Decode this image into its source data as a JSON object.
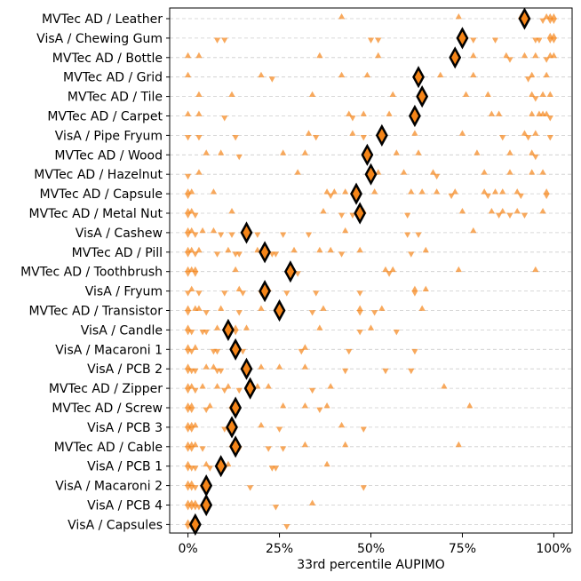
{
  "chart_data": {
    "type": "scatter",
    "title": "",
    "xlabel": "33rd percentile AUPIMO",
    "ylabel": "",
    "xlim": [
      -0.05,
      1.05
    ],
    "x_ticks": [
      {
        "value": 0,
        "label": "0%"
      },
      {
        "value": 0.25,
        "label": "25%"
      },
      {
        "value": 0.5,
        "label": "50%"
      },
      {
        "value": 0.75,
        "label": "75%"
      },
      {
        "value": 1,
        "label": "100%"
      }
    ],
    "grid": "horizontal dashed",
    "marker_color": "#f58518",
    "summary_fill": "#f58518",
    "summary_edge": "#000000",
    "series_legend": [
      "triangle-up",
      "triangle-down",
      "diamond (median)"
    ],
    "categories": [
      {
        "label": "MVTec AD / Leather",
        "median": 0.92,
        "up": [
          0.42,
          0.74,
          0.91,
          0.98,
          0.99,
          1.0
        ],
        "down": [
          0.97,
          0.99,
          1.0
        ]
      },
      {
        "label": "VisA / Chewing Gum",
        "median": 0.75,
        "up": [
          0.99,
          1.0
        ],
        "down": [
          0.08,
          0.1,
          0.5,
          0.52,
          0.78,
          0.84,
          0.95,
          0.96,
          0.99,
          1.0
        ]
      },
      {
        "label": "MVTec AD / Bottle",
        "median": 0.73,
        "up": [
          0.0,
          0.03,
          0.36,
          0.52,
          0.78,
          0.87,
          0.92,
          0.95,
          0.99,
          1.0
        ],
        "down": [
          0.88,
          0.98
        ]
      },
      {
        "label": "MVTec AD / Grid",
        "median": 0.63,
        "up": [
          0.0,
          0.2,
          0.42,
          0.49,
          0.69,
          0.78,
          0.94,
          0.98
        ],
        "down": [
          0.23,
          0.93
        ]
      },
      {
        "label": "MVTec AD / Tile",
        "median": 0.64,
        "up": [
          0.03,
          0.12,
          0.34,
          0.56,
          0.76,
          0.82,
          0.94,
          0.97,
          0.99
        ],
        "down": [
          0.95
        ]
      },
      {
        "label": "MVTec AD / Carpet",
        "median": 0.62,
        "up": [
          0.0,
          0.03,
          0.44,
          0.48,
          0.55,
          0.83,
          0.85,
          0.94,
          0.96,
          0.97,
          0.98
        ],
        "down": [
          0.1,
          0.45,
          0.99
        ]
      },
      {
        "label": "VisA / Pipe Fryum",
        "median": 0.53,
        "up": [
          0.33,
          0.45,
          0.62,
          0.75,
          0.92,
          0.95
        ],
        "down": [
          0.0,
          0.03,
          0.13,
          0.35,
          0.48,
          0.86,
          0.93,
          0.99
        ]
      },
      {
        "label": "MVTec AD / Wood",
        "median": 0.49,
        "up": [
          0.05,
          0.09,
          0.26,
          0.32,
          0.57,
          0.63,
          0.79,
          0.88,
          0.94
        ],
        "down": [
          0.14,
          0.95
        ]
      },
      {
        "label": "MVTec AD / Hazelnut",
        "median": 0.5,
        "up": [
          0.03,
          0.3,
          0.52,
          0.59,
          0.67,
          0.81,
          0.88,
          0.94,
          0.97
        ],
        "down": [
          0.0,
          0.68
        ]
      },
      {
        "label": "MVTec AD / Capsule",
        "median": 0.46,
        "up": [
          0.0,
          0.01,
          0.07,
          0.38,
          0.4,
          0.43,
          0.51,
          0.61,
          0.64,
          0.68,
          0.73,
          0.81,
          0.84,
          0.86,
          0.9,
          0.98
        ],
        "down": [
          0.0,
          0.39,
          0.72,
          0.82,
          0.91,
          0.98
        ]
      },
      {
        "label": "MVTec AD / Metal Nut",
        "median": 0.47,
        "up": [
          0.0,
          0.01,
          0.12,
          0.37,
          0.48,
          0.75,
          0.83,
          0.86,
          0.9,
          0.97
        ],
        "down": [
          0.0,
          0.02,
          0.42,
          0.45,
          0.6,
          0.85,
          0.88,
          0.92
        ]
      },
      {
        "label": "VisA / Cashew",
        "median": 0.16,
        "up": [
          0.0,
          0.01,
          0.04,
          0.07,
          0.43,
          0.78
        ],
        "down": [
          0.0,
          0.02,
          0.09,
          0.12,
          0.19,
          0.26,
          0.33,
          0.6,
          0.63
        ]
      },
      {
        "label": "MVTec AD / Pill",
        "median": 0.21,
        "up": [
          0.0,
          0.01,
          0.03,
          0.11,
          0.19,
          0.29,
          0.36,
          0.39,
          0.47,
          0.65
        ],
        "down": [
          0.0,
          0.02,
          0.08,
          0.13,
          0.14,
          0.23,
          0.24,
          0.42,
          0.61
        ]
      },
      {
        "label": "MVTec AD / Toothbrush",
        "median": 0.28,
        "up": [
          0.0,
          0.01,
          0.02,
          0.13,
          0.28,
          0.54,
          0.56,
          0.74,
          0.95
        ],
        "down": [
          0.0,
          0.02,
          0.3,
          0.55
        ]
      },
      {
        "label": "VisA / Fryum",
        "median": 0.21,
        "up": [
          0.01,
          0.14,
          0.22,
          0.62,
          0.65
        ],
        "down": [
          0.0,
          0.03,
          0.1,
          0.15,
          0.2,
          0.27,
          0.35,
          0.47,
          0.62
        ]
      },
      {
        "label": "MVTec AD / Transistor",
        "median": 0.25,
        "up": [
          0.0,
          0.02,
          0.03,
          0.09,
          0.2,
          0.37,
          0.47,
          0.53,
          0.64
        ],
        "down": [
          0.0,
          0.05,
          0.14,
          0.34,
          0.47,
          0.51
        ]
      },
      {
        "label": "VisA / Candle",
        "median": 0.11,
        "up": [
          0.0,
          0.08,
          0.13,
          0.16,
          0.36,
          0.5
        ],
        "down": [
          0.0,
          0.01,
          0.04,
          0.05,
          0.11,
          0.13,
          0.47,
          0.57
        ]
      },
      {
        "label": "VisA / Macaroni 1",
        "median": 0.13,
        "up": [
          0.0,
          0.02,
          0.13,
          0.32
        ],
        "down": [
          0.0,
          0.01,
          0.07,
          0.08,
          0.15,
          0.31,
          0.44,
          0.62
        ]
      },
      {
        "label": "VisA / PCB 2",
        "median": 0.16,
        "up": [
          0.0,
          0.05,
          0.07,
          0.2,
          0.25,
          0.32
        ],
        "down": [
          0.0,
          0.01,
          0.02,
          0.08,
          0.09,
          0.43,
          0.54,
          0.61
        ]
      },
      {
        "label": "MVTec AD / Zipper",
        "median": 0.17,
        "up": [
          0.0,
          0.01,
          0.04,
          0.08,
          0.11,
          0.19,
          0.22,
          0.39,
          0.7
        ],
        "down": [
          0.0,
          0.02,
          0.1,
          0.14,
          0.34
        ]
      },
      {
        "label": "MVTec AD / Screw",
        "median": 0.13,
        "up": [
          0.0,
          0.01,
          0.06,
          0.12,
          0.26,
          0.32,
          0.38,
          0.77
        ],
        "down": [
          0.0,
          0.01,
          0.05,
          0.12,
          0.36
        ]
      },
      {
        "label": "VisA / PCB 3",
        "median": 0.12,
        "up": [
          0.0,
          0.01,
          0.02,
          0.2,
          0.42
        ],
        "down": [
          0.0,
          0.01,
          0.1,
          0.11,
          0.25,
          0.48
        ]
      },
      {
        "label": "MVTec AD / Cable",
        "median": 0.13,
        "up": [
          0.0,
          0.01,
          0.02,
          0.12,
          0.32,
          0.43,
          0.74
        ],
        "down": [
          0.0,
          0.01,
          0.04,
          0.13,
          0.14,
          0.22,
          0.26
        ]
      },
      {
        "label": "VisA / PCB 1",
        "median": 0.09,
        "up": [
          0.0,
          0.05,
          0.11,
          0.38
        ],
        "down": [
          0.0,
          0.01,
          0.02,
          0.06,
          0.1,
          0.23,
          0.24
        ]
      },
      {
        "label": "VisA / Macaroni 2",
        "median": 0.05,
        "up": [
          0.0,
          0.01
        ],
        "down": [
          0.0,
          0.01,
          0.02,
          0.04,
          0.17,
          0.48
        ]
      },
      {
        "label": "VisA / PCB 4",
        "median": 0.05,
        "up": [
          0.0,
          0.01,
          0.02,
          0.34
        ],
        "down": [
          0.0,
          0.01,
          0.02,
          0.03,
          0.24
        ]
      },
      {
        "label": "VisA / Capsules",
        "median": 0.02,
        "up": [
          0.0,
          0.01,
          0.02
        ],
        "down": [
          0.0,
          0.01,
          0.02,
          0.27
        ]
      }
    ]
  }
}
